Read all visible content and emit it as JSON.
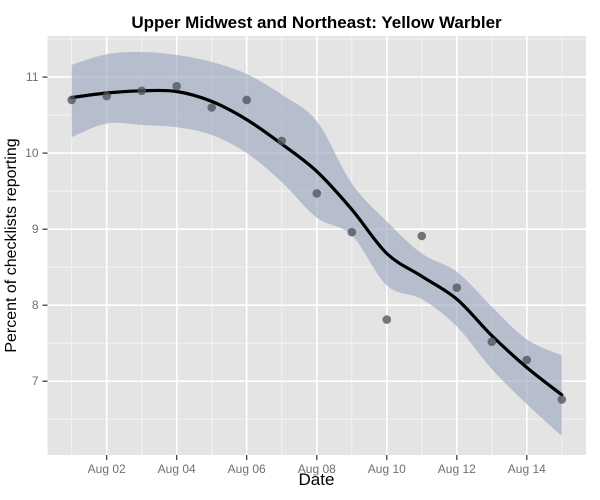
{
  "chart_data": {
    "type": "scatter+smooth-line+confidence-band",
    "title": "Upper Midwest and Northeast: Yellow Warbler",
    "xlabel": "Date",
    "ylabel": "Percent of checklists reporting",
    "legend": "none",
    "grid": "white major and minor gridlines on gray panel",
    "xlim_days": [
      0.31,
      15.69
    ],
    "ylim": [
      6.03,
      11.54
    ],
    "x_dates": [
      "Aug 01",
      "Aug 02",
      "Aug 03",
      "Aug 04",
      "Aug 05",
      "Aug 06",
      "Aug 07",
      "Aug 08",
      "Aug 09",
      "Aug 10",
      "Aug 11",
      "Aug 12",
      "Aug 13",
      "Aug 14",
      "Aug 15"
    ],
    "x_days": [
      1,
      2,
      3,
      4,
      5,
      6,
      7,
      8,
      9,
      10,
      11,
      12,
      13,
      14,
      15
    ],
    "points": [
      10.7,
      10.75,
      10.82,
      10.88,
      10.6,
      10.7,
      10.16,
      9.47,
      8.96,
      7.81,
      8.91,
      8.23,
      7.52,
      7.28,
      6.76
    ],
    "smooth_fit": [
      10.73,
      10.79,
      10.82,
      10.81,
      10.68,
      10.44,
      10.12,
      9.76,
      9.26,
      8.68,
      8.38,
      8.08,
      7.6,
      7.18,
      6.82
    ],
    "band_upper": [
      11.16,
      11.3,
      11.33,
      11.29,
      11.2,
      11.04,
      10.77,
      10.42,
      9.6,
      9.1,
      8.68,
      8.44,
      7.98,
      7.55,
      7.34
    ],
    "band_lower": [
      10.21,
      10.39,
      10.37,
      10.34,
      10.24,
      10.0,
      9.62,
      9.15,
      8.92,
      8.26,
      8.08,
      7.72,
      7.16,
      6.7,
      6.28
    ],
    "x_ticks": [
      {
        "day": 2,
        "label": "Aug 02"
      },
      {
        "day": 4,
        "label": "Aug 04"
      },
      {
        "day": 6,
        "label": "Aug 06"
      },
      {
        "day": 8,
        "label": "Aug 08"
      },
      {
        "day": 10,
        "label": "Aug 10"
      },
      {
        "day": 12,
        "label": "Aug 12"
      },
      {
        "day": 14,
        "label": "Aug 14"
      }
    ],
    "x_grid_minor_days": [
      1,
      3,
      5,
      7,
      9,
      11,
      13,
      15
    ],
    "y_ticks": [
      {
        "value": 7,
        "label": "7"
      },
      {
        "value": 8,
        "label": "8"
      },
      {
        "value": 9,
        "label": "9"
      },
      {
        "value": 10,
        "label": "10"
      },
      {
        "value": 11,
        "label": "11"
      }
    ],
    "y_grid_minor": [
      6.5,
      7.5,
      8.5,
      9.5,
      10.5,
      11.5
    ],
    "colors": {
      "panel_background": "#e4e4e4",
      "gridline": "#ffffff",
      "confidence_band": "#9aa5bd",
      "smooth_line": "#000000",
      "point": "#50545b",
      "tick_mark": "#333333",
      "tick_label": "#707070",
      "title_text": "#000000"
    }
  }
}
